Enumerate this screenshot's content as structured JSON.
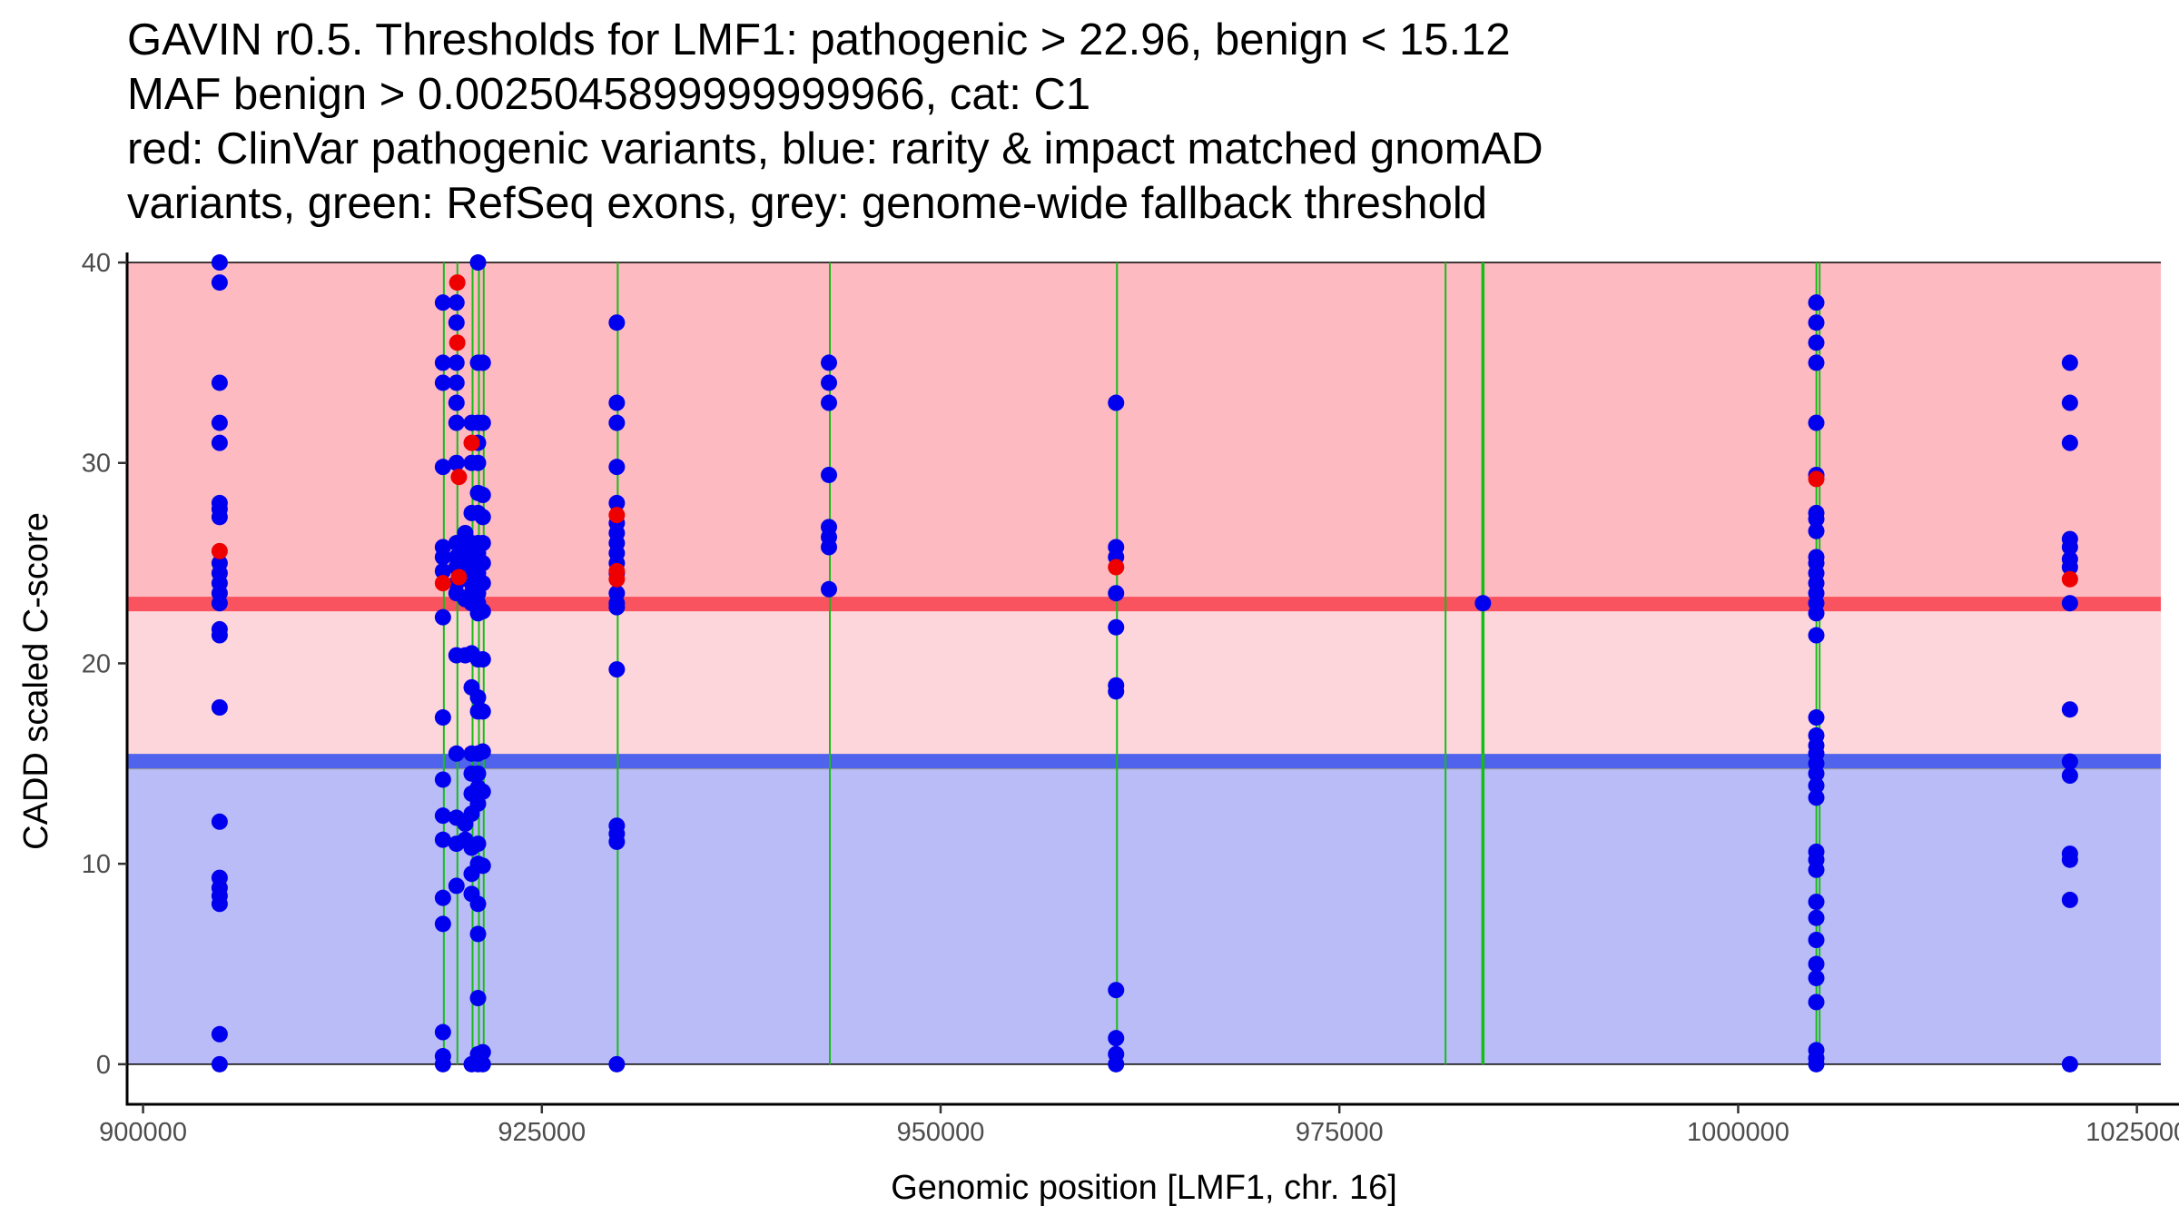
{
  "title": {
    "lines": [
      "GAVIN r0.5. Thresholds for LMF1: pathogenic > 22.96, benign < 15.12",
      "MAF benign > 0.0025045899999999966, cat: C1",
      "red: ClinVar pathogenic variants, blue: rarity & impact matched gnomAD",
      "variants, green: RefSeq exons, grey: genome-wide fallback threshold"
    ]
  },
  "colors": {
    "pathogenic_region": "#fdbac1",
    "vus_region": "#fdd6db",
    "benign_region": "#babcf8",
    "pathogenic_threshold": "#f8535f",
    "benign_threshold": "#4f63ec",
    "fallback_threshold": "#9a9a9a",
    "exon": "#17bd17",
    "gnomad_point": "#0000ee",
    "clinvar_point": "#ee0000",
    "axis": "#000000"
  },
  "chart_data": {
    "type": "scatter",
    "xlabel": "Genomic position [LMF1, chr. 16]",
    "ylabel": "CADD scaled C-score",
    "xlim": [
      899000,
      1026500
    ],
    "ylim": [
      -2,
      40.5
    ],
    "x_ticks": [
      900000,
      925000,
      950000,
      975000,
      1000000,
      1025000
    ],
    "x_tick_labels": [
      "900000",
      "925000",
      "950000",
      "975000",
      "1000000",
      "1025000"
    ],
    "y_ticks": [
      0,
      10,
      20,
      30,
      40
    ],
    "y_tick_labels": [
      "0",
      "10",
      "20",
      "30",
      "40"
    ],
    "thresholds": {
      "pathogenic": 22.96,
      "benign": 15.12,
      "fallback_benign": 14.8,
      "score_max": 40
    },
    "exons": [
      {
        "start": 918800,
        "end": 918900
      },
      {
        "start": 919650,
        "end": 919750
      },
      {
        "start": 920600,
        "end": 920700
      },
      {
        "start": 921000,
        "end": 921100
      },
      {
        "start": 921300,
        "end": 921400
      },
      {
        "start": 929700,
        "end": 929800
      },
      {
        "start": 943000,
        "end": 943050
      },
      {
        "start": 961000,
        "end": 961100
      },
      {
        "start": 981600,
        "end": 981700
      },
      {
        "start": 983900,
        "end": 984100
      },
      {
        "start": 1004850,
        "end": 1004950
      },
      {
        "start": 1005050,
        "end": 1005150
      }
    ],
    "series": [
      {
        "name": "gnomAD (rarity & impact matched)",
        "color": "#0000ee",
        "points": [
          [
            904800,
            40
          ],
          [
            904800,
            39
          ],
          [
            904800,
            34
          ],
          [
            904800,
            32
          ],
          [
            904800,
            31
          ],
          [
            904800,
            28
          ],
          [
            904800,
            27.7
          ],
          [
            904800,
            27.3
          ],
          [
            904800,
            25
          ],
          [
            904800,
            24.5
          ],
          [
            904800,
            24
          ],
          [
            904800,
            23.5
          ],
          [
            904800,
            23
          ],
          [
            904800,
            21.7
          ],
          [
            904800,
            21.4
          ],
          [
            904800,
            17.8
          ],
          [
            904800,
            12.1
          ],
          [
            904800,
            9.3
          ],
          [
            904800,
            8.8
          ],
          [
            904800,
            8.4
          ],
          [
            904800,
            8
          ],
          [
            904800,
            1.5
          ],
          [
            904800,
            0
          ],
          [
            918800,
            38
          ],
          [
            918800,
            35
          ],
          [
            918800,
            34
          ],
          [
            918800,
            29.8
          ],
          [
            918800,
            25.8
          ],
          [
            918800,
            25.3
          ],
          [
            918800,
            24.6
          ],
          [
            918800,
            22.3
          ],
          [
            918800,
            17.3
          ],
          [
            918800,
            14.2
          ],
          [
            918800,
            12.4
          ],
          [
            918800,
            11.2
          ],
          [
            918800,
            8.3
          ],
          [
            918800,
            7
          ],
          [
            918800,
            1.6
          ],
          [
            918800,
            0.4
          ],
          [
            918800,
            0
          ],
          [
            919650,
            38
          ],
          [
            919650,
            37
          ],
          [
            919650,
            35
          ],
          [
            919650,
            34
          ],
          [
            919650,
            33
          ],
          [
            919650,
            32
          ],
          [
            919650,
            30
          ],
          [
            919650,
            26
          ],
          [
            919650,
            25.3
          ],
          [
            919650,
            24.8
          ],
          [
            919650,
            24
          ],
          [
            919650,
            23.5
          ],
          [
            919650,
            20.4
          ],
          [
            919650,
            15.5
          ],
          [
            919650,
            12.3
          ],
          [
            919650,
            11
          ],
          [
            919650,
            8.9
          ],
          [
            920200,
            26.5
          ],
          [
            920200,
            25.8
          ],
          [
            920200,
            25
          ],
          [
            920200,
            23.2
          ],
          [
            920200,
            20.4
          ],
          [
            920200,
            12
          ],
          [
            920200,
            11.2
          ],
          [
            920600,
            32
          ],
          [
            920600,
            30
          ],
          [
            920600,
            27.5
          ],
          [
            920600,
            26
          ],
          [
            920600,
            25.5
          ],
          [
            920600,
            25
          ],
          [
            920600,
            24.5
          ],
          [
            920600,
            24
          ],
          [
            920600,
            23.5
          ],
          [
            920600,
            23
          ],
          [
            920600,
            20.5
          ],
          [
            920600,
            18.8
          ],
          [
            920600,
            15.5
          ],
          [
            920600,
            14.5
          ],
          [
            920600,
            13.5
          ],
          [
            920600,
            12.5
          ],
          [
            920600,
            10.8
          ],
          [
            920600,
            9.5
          ],
          [
            920600,
            8.5
          ],
          [
            920600,
            0
          ],
          [
            921000,
            40
          ],
          [
            921000,
            35
          ],
          [
            921000,
            32
          ],
          [
            921000,
            31
          ],
          [
            921000,
            30
          ],
          [
            921000,
            28.5
          ],
          [
            921000,
            27.5
          ],
          [
            921000,
            26
          ],
          [
            921000,
            25.5
          ],
          [
            921000,
            25
          ],
          [
            921000,
            24.5
          ],
          [
            921000,
            24
          ],
          [
            921000,
            23.5
          ],
          [
            921000,
            23
          ],
          [
            921000,
            22.5
          ],
          [
            921000,
            20.2
          ],
          [
            921000,
            18.3
          ],
          [
            921000,
            17.6
          ],
          [
            921000,
            15.5
          ],
          [
            921000,
            14.5
          ],
          [
            921000,
            13.8
          ],
          [
            921000,
            13
          ],
          [
            921000,
            11
          ],
          [
            921000,
            10
          ],
          [
            921000,
            8
          ],
          [
            921000,
            6.5
          ],
          [
            921000,
            3.3
          ],
          [
            921000,
            0.5
          ],
          [
            921000,
            0
          ],
          [
            921300,
            35
          ],
          [
            921300,
            32
          ],
          [
            921300,
            28.4
          ],
          [
            921300,
            27.3
          ],
          [
            921300,
            26
          ],
          [
            921300,
            25
          ],
          [
            921300,
            24
          ],
          [
            921300,
            22.6
          ],
          [
            921300,
            20.2
          ],
          [
            921300,
            17.6
          ],
          [
            921300,
            15.6
          ],
          [
            921300,
            13.6
          ],
          [
            921300,
            9.9
          ],
          [
            921300,
            0.6
          ],
          [
            921300,
            0
          ],
          [
            929700,
            37
          ],
          [
            929700,
            33
          ],
          [
            929700,
            32
          ],
          [
            929700,
            29.8
          ],
          [
            929700,
            28
          ],
          [
            929700,
            27
          ],
          [
            929700,
            26.5
          ],
          [
            929700,
            26
          ],
          [
            929700,
            25.5
          ],
          [
            929700,
            25
          ],
          [
            929700,
            24.5
          ],
          [
            929700,
            23.5
          ],
          [
            929700,
            23
          ],
          [
            929700,
            22.8
          ],
          [
            929700,
            19.7
          ],
          [
            929700,
            11.9
          ],
          [
            929700,
            11.5
          ],
          [
            929700,
            11.1
          ],
          [
            929700,
            0
          ],
          [
            943000,
            35
          ],
          [
            943000,
            34
          ],
          [
            943000,
            33
          ],
          [
            943000,
            29.4
          ],
          [
            943000,
            26.8
          ],
          [
            943000,
            26.3
          ],
          [
            943000,
            25.8
          ],
          [
            943000,
            23.7
          ],
          [
            961000,
            33
          ],
          [
            961000,
            25.8
          ],
          [
            961000,
            25.3
          ],
          [
            961000,
            23.5
          ],
          [
            961000,
            21.8
          ],
          [
            961000,
            18.9
          ],
          [
            961000,
            18.6
          ],
          [
            961000,
            3.7
          ],
          [
            961000,
            1.3
          ],
          [
            961000,
            0.5
          ],
          [
            961000,
            0
          ],
          [
            984000,
            23
          ],
          [
            1004900,
            38
          ],
          [
            1004900,
            37
          ],
          [
            1004900,
            36
          ],
          [
            1004900,
            35
          ],
          [
            1004900,
            32
          ],
          [
            1004900,
            29.4
          ],
          [
            1004900,
            27.5
          ],
          [
            1004900,
            27.2
          ],
          [
            1004900,
            26.6
          ],
          [
            1004900,
            25.3
          ],
          [
            1004900,
            25
          ],
          [
            1004900,
            24.5
          ],
          [
            1004900,
            24
          ],
          [
            1004900,
            23.5
          ],
          [
            1004900,
            23
          ],
          [
            1004900,
            22.5
          ],
          [
            1004900,
            21.4
          ],
          [
            1004900,
            17.3
          ],
          [
            1004900,
            16.4
          ],
          [
            1004900,
            15.9
          ],
          [
            1004900,
            15.5
          ],
          [
            1004900,
            15
          ],
          [
            1004900,
            14.5
          ],
          [
            1004900,
            13.9
          ],
          [
            1004900,
            13.3
          ],
          [
            1004900,
            10.6
          ],
          [
            1004900,
            10.2
          ],
          [
            1004900,
            9.7
          ],
          [
            1004900,
            8.1
          ],
          [
            1004900,
            7.3
          ],
          [
            1004900,
            6.2
          ],
          [
            1004900,
            5
          ],
          [
            1004900,
            4.3
          ],
          [
            1004900,
            3.1
          ],
          [
            1004900,
            0.7
          ],
          [
            1004900,
            0.3
          ],
          [
            1004900,
            0
          ],
          [
            1020800,
            35
          ],
          [
            1020800,
            33
          ],
          [
            1020800,
            31
          ],
          [
            1020800,
            26.2
          ],
          [
            1020800,
            25.8
          ],
          [
            1020800,
            25.2
          ],
          [
            1020800,
            24.8
          ],
          [
            1020800,
            23
          ],
          [
            1020800,
            17.7
          ],
          [
            1020800,
            15.1
          ],
          [
            1020800,
            14.4
          ],
          [
            1020800,
            10.5
          ],
          [
            1020800,
            10.2
          ],
          [
            1020800,
            8.2
          ],
          [
            1020800,
            0
          ]
        ]
      },
      {
        "name": "ClinVar pathogenic",
        "color": "#ee0000",
        "points": [
          [
            904800,
            25.6
          ],
          [
            918800,
            24
          ],
          [
            919700,
            39
          ],
          [
            919700,
            36
          ],
          [
            919800,
            29.3
          ],
          [
            919800,
            24.3
          ],
          [
            920600,
            31
          ],
          [
            929700,
            27.4
          ],
          [
            929700,
            24.6
          ],
          [
            929700,
            24.2
          ],
          [
            961000,
            24.8
          ],
          [
            1004900,
            29.2
          ],
          [
            1020800,
            24.2
          ]
        ]
      }
    ]
  }
}
